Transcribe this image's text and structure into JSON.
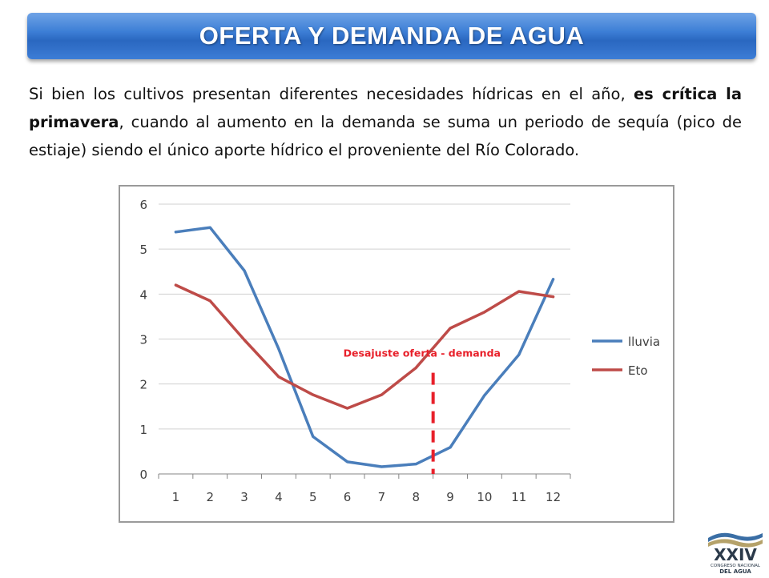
{
  "slide": {
    "title": "OFERTA Y DEMANDA DE AGUA",
    "paragraph": {
      "part1": "Si bien los cultivos presentan diferentes necesidades hídricas en el año, ",
      "bold": "es crítica la primavera",
      "part2": ", cuando al aumento en la demanda se suma un periodo de sequía (pico de estiaje) siendo el único aporte hídrico el proveniente del Río Colorado."
    },
    "logo": {
      "numeral": "XXIV",
      "line1": "CONGRESO NACIONAL",
      "line2": "DEL AGUA"
    }
  },
  "chart_data": {
    "type": "line",
    "x": [
      1,
      2,
      3,
      4,
      5,
      6,
      7,
      8,
      9,
      10,
      11,
      12
    ],
    "ylim": [
      0,
      6
    ],
    "yticks": [
      0,
      1,
      2,
      3,
      4,
      5,
      6
    ],
    "grid": true,
    "legend_position": "right",
    "series": [
      {
        "name": "lluvia",
        "color": "#4a7ebb",
        "values": [
          5.38,
          5.48,
          4.52,
          2.78,
          0.83,
          0.27,
          0.16,
          0.22,
          0.59,
          1.75,
          2.65,
          4.33
        ]
      },
      {
        "name": "Eto",
        "color": "#be4b48",
        "values": [
          4.2,
          3.85,
          2.98,
          2.16,
          1.76,
          1.46,
          1.76,
          2.36,
          3.24,
          3.6,
          4.06,
          3.94
        ]
      }
    ],
    "annotation": {
      "text": "Desajuste oferta - demanda",
      "color": "#e8202a",
      "x": 8.5,
      "y_from": 0,
      "y_to": 2.25
    }
  }
}
